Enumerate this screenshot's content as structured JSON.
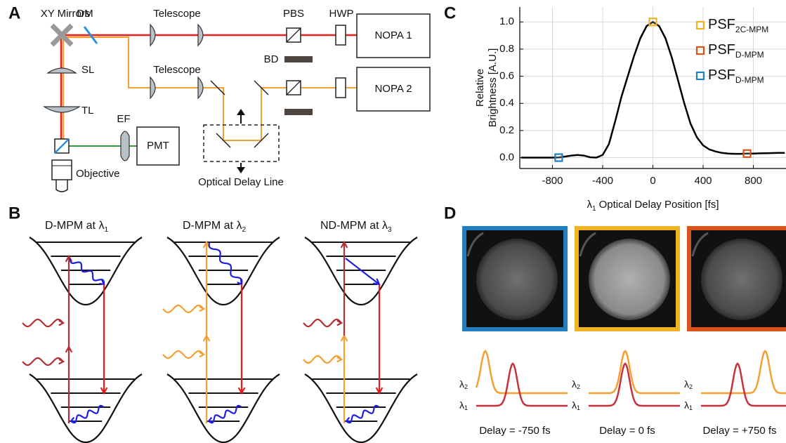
{
  "panel_labels": [
    "A",
    "B",
    "C",
    "D"
  ],
  "panel_a": {
    "labels": [
      "XY Mirrors",
      "DM",
      "Telescope",
      "PBS",
      "HWP",
      "NOPA 1",
      "BD",
      "Telescope",
      "NOPA 2",
      "SL",
      "TL",
      "EF",
      "PMT",
      "Objective",
      "Optical Delay Line"
    ]
  },
  "panel_b": [
    {
      "title": "D-MPM at λ",
      "subscript": "1"
    },
    {
      "title": "D-MPM at λ",
      "subscript": "2"
    },
    {
      "title": "ND-MPM at λ",
      "subscript": "3"
    }
  ],
  "chart_data": {
    "type": "line",
    "y_label": [
      "Relative",
      "Brightness [A.U.]"
    ],
    "x_label": [
      "λ",
      "1",
      "Optical Delay Position [fs]"
    ],
    "color": "#000000",
    "x": [
      -1050,
      -1000,
      -950,
      -900,
      -850,
      -800,
      -750,
      -700,
      -650,
      -600,
      -550,
      -500,
      -450,
      -400,
      -350,
      -300,
      -250,
      -200,
      -150,
      -100,
      -50,
      0,
      50,
      100,
      150,
      200,
      250,
      300,
      350,
      400,
      450,
      500,
      550,
      600,
      650,
      700,
      750,
      800,
      850,
      900,
      950,
      1000,
      1050
    ],
    "values": [
      0,
      0,
      0,
      0,
      0,
      0,
      0.002,
      0.008,
      0.015,
      0.02,
      0.015,
      0.003,
      0,
      0.02,
      0.1,
      0.27,
      0.45,
      0.6,
      0.75,
      0.88,
      0.97,
      1.0,
      0.97,
      0.88,
      0.74,
      0.57,
      0.4,
      0.25,
      0.15,
      0.09,
      0.06,
      0.045,
      0.035,
      0.03,
      0.028,
      0.028,
      0.03,
      0.03,
      0.032,
      0.033,
      0.034,
      0.035,
      0.035
    ],
    "markers": [
      {
        "name": "PSF",
        "subscript": "2C-MPM",
        "color": "#f0b323",
        "x": 0,
        "y": 1.0
      },
      {
        "name": "PSF",
        "subscript": "D-MPM",
        "color": "#d95319",
        "x": 750,
        "y": 0.03
      },
      {
        "name": "PSF",
        "subscript": "D-MPM",
        "color": "#1f7fc0",
        "x": -750,
        "y": 0.0
      }
    ],
    "xlim": [
      -1060,
      1060
    ],
    "ylim": [
      -0.08,
      1.11
    ],
    "xticks": [
      -800,
      -400,
      0,
      400,
      800
    ],
    "yticks": [
      {
        "value": 0,
        "label": "0.0"
      },
      {
        "value": 0.2,
        "label": "0.2"
      },
      {
        "value": 0.4,
        "label": "0.4"
      },
      {
        "value": 0.6,
        "label": "0.6"
      },
      {
        "value": 0.8,
        "label": "0.8"
      },
      {
        "value": 1.0,
        "label": "1.0"
      }
    ],
    "grid": true
  },
  "panel_d": {
    "pulse_labels": [
      {
        "symbol": "λ",
        "subscript": "2"
      },
      {
        "symbol": "λ",
        "subscript": "1"
      }
    ],
    "delays": [
      "Delay = -750 fs",
      "Delay = 0 fs",
      "Delay = +750 fs"
    ]
  }
}
